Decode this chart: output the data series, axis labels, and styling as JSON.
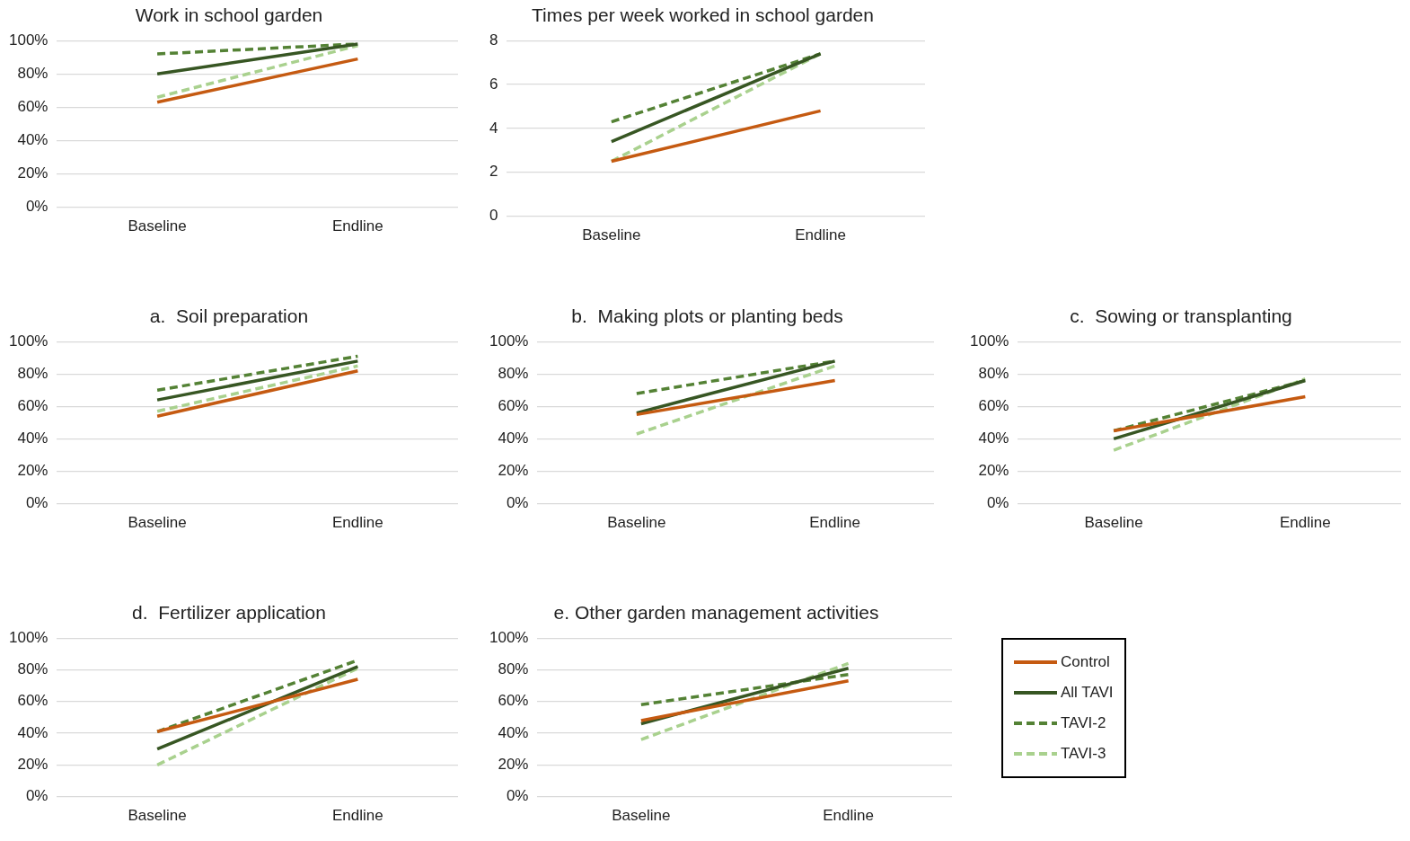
{
  "chart_data": [
    {
      "type": "line",
      "title": "Work in school garden",
      "categories": [
        "Baseline",
        "Endline"
      ],
      "ylim": [
        0,
        100
      ],
      "yticks": [
        {
          "value": 0,
          "label": "0%"
        },
        {
          "value": 20,
          "label": "20%"
        },
        {
          "value": 40,
          "label": "40%"
        },
        {
          "value": 60,
          "label": "60%"
        },
        {
          "value": 80,
          "label": "80%"
        },
        {
          "value": 100,
          "label": "100%"
        }
      ],
      "grid": "y",
      "marker": "none",
      "legend": false,
      "series": [
        {
          "color": "#c55a11",
          "line_style": "solid",
          "values": [
            63,
            89
          ]
        },
        {
          "color": "#375623",
          "line_style": "solid",
          "values": [
            80,
            98
          ]
        },
        {
          "color": "#548235",
          "line_style": "dashed",
          "values": [
            92,
            98
          ]
        },
        {
          "color": "#a9d18e",
          "line_style": "dashed",
          "values": [
            66,
            97
          ]
        }
      ]
    },
    {
      "type": "line",
      "title": "Times per week worked in school garden",
      "categories": [
        "Baseline",
        "Endline"
      ],
      "ylim": [
        0,
        8
      ],
      "yticks": [
        0,
        2,
        4,
        6,
        8
      ],
      "grid": "y",
      "marker": "none",
      "legend": false,
      "series": [
        {
          "color": "#c55a11",
          "line_style": "solid",
          "values": [
            2.5,
            4.8
          ]
        },
        {
          "color": "#375623",
          "line_style": "solid",
          "values": [
            3.4,
            7.4
          ]
        },
        {
          "color": "#548235",
          "line_style": "dashed",
          "values": [
            4.3,
            7.4
          ]
        },
        {
          "color": "#a9d18e",
          "line_style": "dashed",
          "values": [
            2.5,
            7.4
          ]
        }
      ]
    },
    {
      "type": "line",
      "title": "a.  Soil preparation",
      "categories": [
        "Baseline",
        "Endline"
      ],
      "ylim": [
        0,
        100
      ],
      "yticks": [
        {
          "value": 0,
          "label": "0%"
        },
        {
          "value": 20,
          "label": "20%"
        },
        {
          "value": 40,
          "label": "40%"
        },
        {
          "value": 60,
          "label": "60%"
        },
        {
          "value": 80,
          "label": "80%"
        },
        {
          "value": 100,
          "label": "100%"
        }
      ],
      "grid": "y",
      "marker": "none",
      "legend": false,
      "series": [
        {
          "color": "#c55a11",
          "line_style": "solid",
          "values": [
            54,
            82
          ]
        },
        {
          "color": "#375623",
          "line_style": "solid",
          "values": [
            64,
            88
          ]
        },
        {
          "color": "#548235",
          "line_style": "dashed",
          "values": [
            70,
            91
          ]
        },
        {
          "color": "#a9d18e",
          "line_style": "dashed",
          "values": [
            57,
            85
          ]
        }
      ]
    },
    {
      "type": "line",
      "title": "b.  Making plots or planting beds",
      "categories": [
        "Baseline",
        "Endline"
      ],
      "ylim": [
        0,
        100
      ],
      "yticks": [
        {
          "value": 0,
          "label": "0%"
        },
        {
          "value": 20,
          "label": "20%"
        },
        {
          "value": 40,
          "label": "40%"
        },
        {
          "value": 60,
          "label": "60%"
        },
        {
          "value": 80,
          "label": "80%"
        },
        {
          "value": 100,
          "label": "100%"
        }
      ],
      "grid": "y",
      "marker": "none",
      "legend": false,
      "series": [
        {
          "color": "#c55a11",
          "line_style": "solid",
          "values": [
            55,
            76
          ]
        },
        {
          "color": "#375623",
          "line_style": "solid",
          "values": [
            56,
            88
          ]
        },
        {
          "color": "#548235",
          "line_style": "dashed",
          "values": [
            68,
            88
          ]
        },
        {
          "color": "#a9d18e",
          "line_style": "dashed",
          "values": [
            43,
            85
          ]
        }
      ]
    },
    {
      "type": "line",
      "title": "c.  Sowing or transplanting",
      "categories": [
        "Baseline",
        "Endline"
      ],
      "ylim": [
        0,
        100
      ],
      "yticks": [
        {
          "value": 0,
          "label": "0%"
        },
        {
          "value": 20,
          "label": "20%"
        },
        {
          "value": 40,
          "label": "40%"
        },
        {
          "value": 60,
          "label": "60%"
        },
        {
          "value": 80,
          "label": "80%"
        },
        {
          "value": 100,
          "label": "100%"
        }
      ],
      "grid": "y",
      "marker": "none",
      "legend": false,
      "series": [
        {
          "color": "#c55a11",
          "line_style": "solid",
          "values": [
            45,
            66
          ]
        },
        {
          "color": "#375623",
          "line_style": "solid",
          "values": [
            40,
            76
          ]
        },
        {
          "color": "#548235",
          "line_style": "dashed",
          "values": [
            45,
            76
          ]
        },
        {
          "color": "#a9d18e",
          "line_style": "dashed",
          "values": [
            33,
            77
          ]
        }
      ]
    },
    {
      "type": "line",
      "title": "d.  Fertilizer application",
      "categories": [
        "Baseline",
        "Endline"
      ],
      "ylim": [
        0,
        100
      ],
      "yticks": [
        {
          "value": 0,
          "label": "0%"
        },
        {
          "value": 20,
          "label": "20%"
        },
        {
          "value": 40,
          "label": "40%"
        },
        {
          "value": 60,
          "label": "60%"
        },
        {
          "value": 80,
          "label": "80%"
        },
        {
          "value": 100,
          "label": "100%"
        }
      ],
      "grid": "y",
      "marker": "none",
      "legend": false,
      "series": [
        {
          "color": "#c55a11",
          "line_style": "solid",
          "values": [
            41,
            74
          ]
        },
        {
          "color": "#375623",
          "line_style": "solid",
          "values": [
            30,
            82
          ]
        },
        {
          "color": "#548235",
          "line_style": "dashed",
          "values": [
            41,
            86
          ]
        },
        {
          "color": "#a9d18e",
          "line_style": "dashed",
          "values": [
            20,
            81
          ]
        }
      ]
    },
    {
      "type": "line",
      "title": "e. Other garden management activities",
      "categories": [
        "Baseline",
        "Endline"
      ],
      "ylim": [
        0,
        100
      ],
      "yticks": [
        {
          "value": 0,
          "label": "0%"
        },
        {
          "value": 20,
          "label": "20%"
        },
        {
          "value": 40,
          "label": "40%"
        },
        {
          "value": 60,
          "label": "60%"
        },
        {
          "value": 80,
          "label": "80%"
        },
        {
          "value": 100,
          "label": "100%"
        }
      ],
      "grid": "y",
      "marker": "none",
      "legend": "right",
      "series": [
        {
          "name": "Control",
          "color": "#c55a11",
          "line_style": "solid",
          "values": [
            48,
            73
          ]
        },
        {
          "name": "All TAVI",
          "color": "#375623",
          "line_style": "solid",
          "values": [
            46,
            81
          ]
        },
        {
          "name": "TAVI-2",
          "color": "#548235",
          "line_style": "dashed",
          "values": [
            58,
            77
          ]
        },
        {
          "name": "TAVI-3",
          "color": "#a9d18e",
          "line_style": "dashed",
          "values": [
            36,
            84
          ]
        }
      ]
    }
  ]
}
